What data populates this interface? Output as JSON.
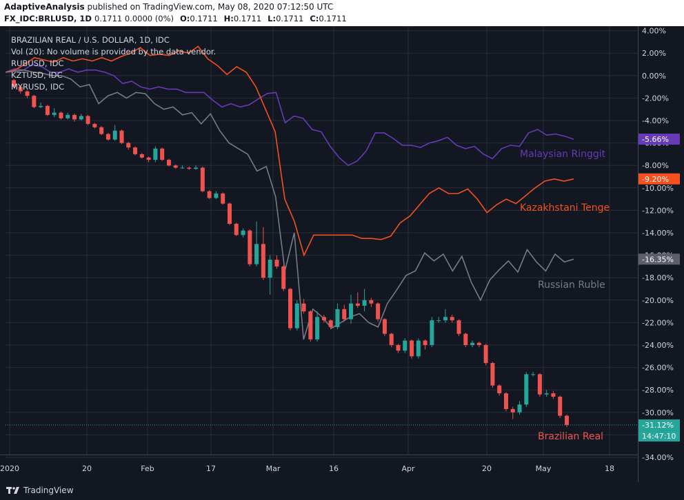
{
  "header": {
    "author": "AdaptiveAnalysis",
    "published_text": "published on TradingView.com, May 08, 2020 07:12:50 UTC",
    "symbol": "FX_IDC:BRLUSD, 1D",
    "values": "0.1711 0.0000 (0%)",
    "ohlc": [
      {
        "k": "O:",
        "v": "0.1711"
      },
      {
        "k": "H:",
        "v": "0.1711"
      },
      {
        "k": "L:",
        "v": "0.1711"
      },
      {
        "k": "C:",
        "v": "0.1711"
      }
    ]
  },
  "legend": {
    "title": "BRAZILIAN REAL / U.S. DOLLAR, 1D, IDC",
    "vol": "Vol (20): No volume is provided by the data vendor.",
    "comparisons": [
      "RUBUSD, IDC",
      "KZTUSD, IDC",
      "MYRUSD, IDC"
    ]
  },
  "footer": {
    "brand": "TradingView"
  },
  "colors": {
    "background": "#131722",
    "grid": "#2a2e39",
    "up": "#26a69a",
    "down": "#ef5350",
    "myr": "#673ab7",
    "kzt": "#f4511e",
    "rub": "#787b86",
    "price_line": "#26a69a"
  },
  "chart_data": {
    "type": "candlestick with comparison lines",
    "y_unit": "% change",
    "ylim": [
      -34,
      4
    ],
    "y_ticks": [
      "4.00%",
      "2.00%",
      "0.00%",
      "-2.00%",
      "-4.00%",
      "-6.00%",
      "-8.00%",
      "-10.00%",
      "-12.00%",
      "-14.00%",
      "-16.00%",
      "-18.00%",
      "-20.00%",
      "-22.00%",
      "-24.00%",
      "-26.00%",
      "-28.00%",
      "-30.00%",
      "-32.00%",
      "-34.00%"
    ],
    "x_ticks": [
      "2020",
      "20",
      "Feb",
      "17",
      "Mar",
      "16",
      "Apr",
      "20",
      "May",
      "18"
    ],
    "series": [
      {
        "name": "Malaysian Ringgit",
        "last": "-5.66%",
        "values": [
          0.3,
          0.6,
          0.5,
          1.0,
          0.8,
          0.3,
          0.3,
          0.6,
          0.3,
          0.5,
          0.5,
          0.3,
          0.0,
          -0.7,
          -0.5,
          -1.0,
          -1.2,
          -1.0,
          -1.2,
          -1.2,
          -1.5,
          -1.5,
          -1.5,
          -2.2,
          -2.8,
          -2.5,
          -2.8,
          -2.6,
          -2.1,
          -1.6,
          -1.5,
          -4.2,
          -3.6,
          -3.8,
          -4.8,
          -5.0,
          -6.3,
          -7.3,
          -8.0,
          -7.6,
          -6.7,
          -5.1,
          -5.1,
          -5.6,
          -6.2,
          -6.2,
          -6.4,
          -6.0,
          -5.8,
          -5.5,
          -6.2,
          -6.5,
          -6.3,
          -7.0,
          -7.4,
          -6.5,
          -6.2,
          -6.3,
          -5.1,
          -4.8,
          -5.3,
          -5.2,
          -5.4,
          -5.66
        ]
      },
      {
        "name": "Kazakhstani Tenge",
        "last": "-9.20%",
        "values": [
          0.3,
          0.5,
          1.0,
          1.6,
          1.4,
          1.2,
          1.6,
          1.3,
          1.5,
          1.3,
          1.6,
          1.3,
          1.7,
          2.0,
          2.5,
          1.8,
          1.9,
          1.8,
          2.2,
          2.0,
          2.6,
          1.5,
          0.9,
          0.1,
          0.8,
          0.3,
          -1.0,
          -3.0,
          -5.0,
          -11.0,
          -13.0,
          -16.0,
          -14.2,
          -14.2,
          -14.2,
          -14.2,
          -14.2,
          -14.5,
          -14.5,
          -14.6,
          -14.3,
          -13.1,
          -12.5,
          -11.5,
          -10.5,
          -10.0,
          -10.5,
          -10.5,
          -10.1,
          -11.0,
          -12.2,
          -11.5,
          -11.0,
          -11.4,
          -10.7,
          -10.0,
          -9.4,
          -9.2,
          -9.4,
          -9.2
        ]
      },
      {
        "name": "Russian Ruble",
        "last": "-16.35%",
        "values": [
          0.3,
          0.4,
          0.5,
          0.3,
          0.2,
          0.0,
          0.0,
          -0.3,
          -1.0,
          -0.8,
          -2.5,
          -1.8,
          -1.5,
          -2.0,
          -1.5,
          -1.6,
          -2.5,
          -3.0,
          -2.8,
          -3.5,
          -3.3,
          -4.3,
          -3.4,
          -4.9,
          -6.0,
          -6.5,
          -7.0,
          -8.5,
          -8.1,
          -10.8,
          -17.4,
          -14.0,
          -23.5,
          -20.8,
          -21.5,
          -22.5,
          -22.0,
          -21.5,
          -21.2,
          -22.0,
          -22.4,
          -20.3,
          -19.1,
          -17.8,
          -17.4,
          -15.8,
          -16.5,
          -15.9,
          -17.4,
          -16.1,
          -18.4,
          -20.0,
          -18.2,
          -17.3,
          -16.5,
          -17.5,
          -15.5,
          -16.6,
          -17.4,
          -15.9,
          -16.6,
          -16.35
        ]
      },
      {
        "name": "Brazilian Real",
        "last": "-31.12%",
        "ohlc": [
          [
            -0.4,
            -1.0,
            -1.1,
            -0.3
          ],
          [
            -1.0,
            -1.4,
            -1.6,
            -0.9
          ],
          [
            -1.4,
            -1.8,
            -2.0,
            -1.3
          ],
          [
            -1.8,
            -2.8,
            -2.9,
            -1.7
          ],
          [
            -2.8,
            -2.7,
            -2.9,
            -2.4
          ],
          [
            -2.7,
            -3.5,
            -3.6,
            -2.6
          ],
          [
            -3.5,
            -3.3,
            -3.7,
            -2.9
          ],
          [
            -3.3,
            -3.8,
            -3.9,
            -3.2
          ],
          [
            -3.8,
            -3.5,
            -3.9,
            -3.3
          ],
          [
            -3.5,
            -3.9,
            -4.1,
            -3.4
          ],
          [
            -3.9,
            -3.6,
            -4.0,
            -3.4
          ],
          [
            -3.6,
            -4.3,
            -4.4,
            -3.5
          ],
          [
            -4.3,
            -4.6,
            -4.7,
            -4.2
          ],
          [
            -4.6,
            -5.2,
            -5.3,
            -4.5
          ],
          [
            -5.2,
            -5.7,
            -5.8,
            -5.1
          ],
          [
            -5.7,
            -4.9,
            -5.8,
            -4.4
          ],
          [
            -4.9,
            -6.0,
            -6.1,
            -4.8
          ],
          [
            -6.0,
            -6.4,
            -6.6,
            -5.9
          ],
          [
            -6.4,
            -7.0,
            -7.1,
            -6.3
          ],
          [
            -7.0,
            -7.3,
            -7.4,
            -6.9
          ],
          [
            -7.3,
            -7.5,
            -7.7,
            -7.2
          ],
          [
            -7.5,
            -6.5,
            -7.7,
            -6.3
          ],
          [
            -6.5,
            -7.5,
            -7.6,
            -6.4
          ],
          [
            -7.5,
            -8.0,
            -8.1,
            -7.4
          ],
          [
            -8.0,
            -8.2,
            -8.3,
            -7.9
          ],
          [
            -8.2,
            -8.2,
            -8.3,
            -8.0
          ],
          [
            -8.2,
            -8.3,
            -8.4,
            -8.1
          ],
          [
            -8.3,
            -8.2,
            -8.4,
            -8.0
          ],
          [
            -8.2,
            -10.3,
            -10.4,
            -8.1
          ],
          [
            -10.3,
            -10.9,
            -11.0,
            -10.2
          ],
          [
            -10.9,
            -10.5,
            -11.0,
            -10.3
          ],
          [
            -10.5,
            -11.4,
            -11.5,
            -10.4
          ],
          [
            -11.4,
            -13.2,
            -13.3,
            -11.3
          ],
          [
            -13.2,
            -14.2,
            -14.3,
            -13.1
          ],
          [
            -14.2,
            -13.8,
            -14.4,
            -13.6
          ],
          [
            -13.8,
            -16.8,
            -17.0,
            -13.7
          ],
          [
            -16.8,
            -15.0,
            -17.0,
            -13.0
          ],
          [
            -15.0,
            -18.0,
            -18.2,
            -13.5
          ],
          [
            -18.0,
            -16.4,
            -19.5,
            -16.0
          ],
          [
            -16.4,
            -17.0,
            -17.2,
            -16.0
          ],
          [
            -17.0,
            -19.0,
            -19.2,
            -16.9
          ],
          [
            -19.0,
            -22.5,
            -22.7,
            -18.9
          ],
          [
            -22.5,
            -20.3,
            -22.7,
            -20.0
          ],
          [
            -20.3,
            -21.0,
            -21.2,
            -19.9
          ],
          [
            -21.0,
            -23.5,
            -23.7,
            -20.9
          ],
          [
            -23.5,
            -21.5,
            -23.7,
            -21.0
          ],
          [
            -21.5,
            -21.8,
            -22.0,
            -21.3
          ],
          [
            -21.8,
            -22.4,
            -22.6,
            -21.7
          ],
          [
            -22.4,
            -20.8,
            -22.6,
            -20.3
          ],
          [
            -20.8,
            -21.7,
            -21.9,
            -20.4
          ],
          [
            -21.7,
            -20.3,
            -22.1,
            -19.5
          ],
          [
            -20.3,
            -20.5,
            -20.7,
            -19.3
          ],
          [
            -20.5,
            -20.0,
            -21.0,
            -19.0
          ],
          [
            -20.0,
            -20.3,
            -20.6,
            -19.8
          ],
          [
            -20.3,
            -21.7,
            -21.9,
            -20.2
          ],
          [
            -21.7,
            -23.0,
            -23.2,
            -21.6
          ],
          [
            -23.0,
            -24.0,
            -24.2,
            -22.9
          ],
          [
            -24.0,
            -24.5,
            -24.7,
            -23.9
          ],
          [
            -24.5,
            -23.6,
            -24.7,
            -23.4
          ],
          [
            -23.6,
            -25.0,
            -25.2,
            -23.5
          ],
          [
            -25.0,
            -23.6,
            -25.2,
            -23.4
          ],
          [
            -23.6,
            -24.0,
            -24.4,
            -23.5
          ],
          [
            -24.0,
            -21.8,
            -24.2,
            -21.5
          ],
          [
            -21.8,
            -21.8,
            -22.0,
            -21.5
          ],
          [
            -21.8,
            -21.5,
            -22.0,
            -20.8
          ],
          [
            -21.5,
            -21.8,
            -22.0,
            -21.3
          ],
          [
            -21.8,
            -23.0,
            -23.2,
            -21.7
          ],
          [
            -23.0,
            -24.0,
            -24.2,
            -22.9
          ],
          [
            -24.0,
            -23.8,
            -24.2,
            -23.6
          ],
          [
            -23.8,
            -24.0,
            -24.2,
            -23.7
          ],
          [
            -24.0,
            -25.6,
            -25.8,
            -23.9
          ],
          [
            -25.6,
            -27.6,
            -27.8,
            -25.5
          ],
          [
            -27.6,
            -28.3,
            -28.5,
            -27.5
          ],
          [
            -28.3,
            -29.7,
            -29.9,
            -28.2
          ],
          [
            -29.7,
            -30.0,
            -30.6,
            -29.5
          ],
          [
            -30.0,
            -29.3,
            -30.2,
            -29.0
          ],
          [
            -29.3,
            -26.6,
            -29.5,
            -26.4
          ],
          [
            -26.6,
            -26.6,
            -26.8,
            -26.4
          ],
          [
            -26.6,
            -28.4,
            -28.6,
            -26.5
          ],
          [
            -28.4,
            -28.3,
            -28.6,
            -28.0
          ],
          [
            -28.3,
            -28.6,
            -28.8,
            -28.1
          ],
          [
            -28.6,
            -30.3,
            -30.5,
            -28.5
          ],
          [
            -30.3,
            -31.12,
            -31.3,
            -30.2
          ]
        ]
      }
    ],
    "overlay_labels": [
      "Malaysian Ringgit",
      "Kazakhstani Tenge",
      "Russian Ruble",
      "Brazilian Real"
    ],
    "price_axis_labels": {
      "myr": "-5.66%",
      "kzt": "-9.20%",
      "rub": "-16.35%",
      "brl": "-31.12%",
      "countdown": "14:47:10"
    }
  }
}
